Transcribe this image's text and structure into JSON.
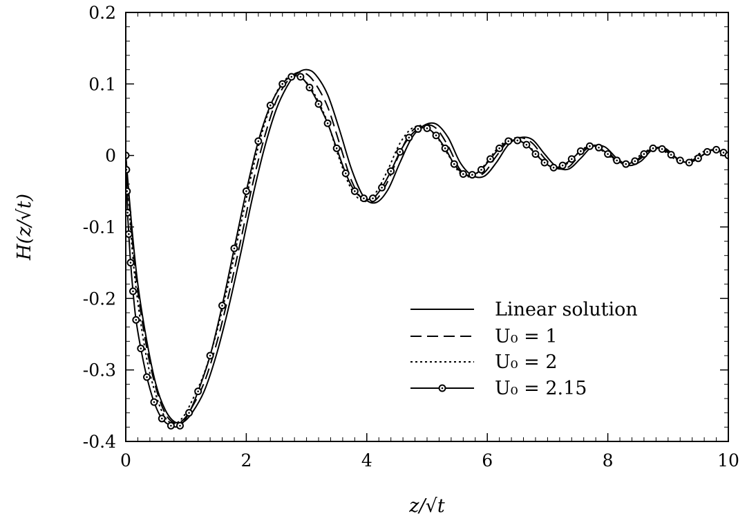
{
  "chart_data": {
    "type": "line",
    "xlabel": "z/√t",
    "ylabel": "H(z/√t)",
    "xlim": [
      0,
      10
    ],
    "ylim": [
      -0.4,
      0.2
    ],
    "x_ticks": [
      "0",
      "2",
      "4",
      "6",
      "8",
      "10"
    ],
    "y_ticks": [
      "-0.4",
      "-0.3",
      "-0.2",
      "-0.1",
      "0",
      "0.1",
      "0.2"
    ],
    "grid": false,
    "legend_position": "bottom-right",
    "series": [
      {
        "name": "Linear solution",
        "style": "solid",
        "points": [
          [
            0,
            0
          ],
          [
            0.1,
            -0.1
          ],
          [
            0.2,
            -0.18
          ],
          [
            0.35,
            -0.26
          ],
          [
            0.5,
            -0.32
          ],
          [
            0.65,
            -0.355
          ],
          [
            0.8,
            -0.372
          ],
          [
            0.95,
            -0.373
          ],
          [
            1.1,
            -0.36
          ],
          [
            1.3,
            -0.33
          ],
          [
            1.5,
            -0.28
          ],
          [
            1.7,
            -0.215
          ],
          [
            1.9,
            -0.14
          ],
          [
            2.1,
            -0.06
          ],
          [
            2.3,
            0.01
          ],
          [
            2.5,
            0.065
          ],
          [
            2.7,
            0.1
          ],
          [
            2.85,
            0.115
          ],
          [
            3.0,
            0.12
          ],
          [
            3.15,
            0.113
          ],
          [
            3.35,
            0.085
          ],
          [
            3.55,
            0.035
          ],
          [
            3.75,
            -0.02
          ],
          [
            3.95,
            -0.058
          ],
          [
            4.15,
            -0.066
          ],
          [
            4.35,
            -0.048
          ],
          [
            4.55,
            -0.01
          ],
          [
            4.75,
            0.025
          ],
          [
            4.95,
            0.042
          ],
          [
            5.15,
            0.044
          ],
          [
            5.35,
            0.025
          ],
          [
            5.55,
            -0.01
          ],
          [
            5.75,
            -0.028
          ],
          [
            5.95,
            -0.029
          ],
          [
            6.15,
            -0.01
          ],
          [
            6.35,
            0.015
          ],
          [
            6.55,
            0.025
          ],
          [
            6.75,
            0.022
          ],
          [
            6.95,
            0.002
          ],
          [
            7.15,
            -0.016
          ],
          [
            7.35,
            -0.019
          ],
          [
            7.55,
            -0.004
          ],
          [
            7.75,
            0.013
          ],
          [
            7.95,
            0.012
          ],
          [
            8.15,
            -0.004
          ],
          [
            8.35,
            -0.014
          ],
          [
            8.55,
            -0.008
          ],
          [
            8.75,
            0.009
          ],
          [
            8.95,
            0.01
          ],
          [
            9.15,
            -0.004
          ],
          [
            9.35,
            -0.01
          ],
          [
            9.55,
            -0.001
          ],
          [
            9.75,
            0.008
          ],
          [
            10,
            0.001
          ]
        ]
      },
      {
        "name": "U₀ = 1",
        "style": "dashed",
        "points": [
          [
            0,
            0
          ],
          [
            0.1,
            -0.11
          ],
          [
            0.2,
            -0.19
          ],
          [
            0.35,
            -0.27
          ],
          [
            0.5,
            -0.325
          ],
          [
            0.65,
            -0.36
          ],
          [
            0.8,
            -0.374
          ],
          [
            0.95,
            -0.37
          ],
          [
            1.1,
            -0.352
          ],
          [
            1.3,
            -0.318
          ],
          [
            1.5,
            -0.265
          ],
          [
            1.7,
            -0.198
          ],
          [
            1.9,
            -0.122
          ],
          [
            2.1,
            -0.042
          ],
          [
            2.3,
            0.025
          ],
          [
            2.5,
            0.077
          ],
          [
            2.7,
            0.106
          ],
          [
            2.85,
            0.116
          ],
          [
            3.0,
            0.114
          ],
          [
            3.15,
            0.1
          ],
          [
            3.35,
            0.068
          ],
          [
            3.55,
            0.016
          ],
          [
            3.75,
            -0.036
          ],
          [
            3.95,
            -0.063
          ],
          [
            4.15,
            -0.062
          ],
          [
            4.35,
            -0.036
          ],
          [
            4.55,
            0.004
          ],
          [
            4.75,
            0.034
          ],
          [
            4.95,
            0.043
          ],
          [
            5.15,
            0.038
          ],
          [
            5.35,
            0.013
          ],
          [
            5.55,
            -0.02
          ],
          [
            5.75,
            -0.03
          ],
          [
            5.95,
            -0.024
          ],
          [
            6.15,
            -0.001
          ],
          [
            6.35,
            0.02
          ],
          [
            6.55,
            0.025
          ],
          [
            6.75,
            0.017
          ],
          [
            6.95,
            -0.004
          ],
          [
            7.15,
            -0.018
          ],
          [
            7.35,
            -0.016
          ],
          [
            7.55,
            0.002
          ],
          [
            7.75,
            0.014
          ],
          [
            7.95,
            0.009
          ],
          [
            8.15,
            -0.007
          ],
          [
            8.35,
            -0.013
          ],
          [
            8.55,
            -0.004
          ],
          [
            8.75,
            0.01
          ],
          [
            8.95,
            0.008
          ],
          [
            9.15,
            -0.006
          ],
          [
            9.35,
            -0.009
          ],
          [
            9.55,
            0.002
          ],
          [
            9.75,
            0.008
          ],
          [
            10,
            0
          ]
        ]
      },
      {
        "name": "U₀ = 2",
        "style": "dotted",
        "points": [
          [
            0,
            0
          ],
          [
            0.1,
            -0.125
          ],
          [
            0.2,
            -0.205
          ],
          [
            0.35,
            -0.285
          ],
          [
            0.5,
            -0.335
          ],
          [
            0.65,
            -0.366
          ],
          [
            0.8,
            -0.375
          ],
          [
            0.95,
            -0.366
          ],
          [
            1.1,
            -0.343
          ],
          [
            1.3,
            -0.305
          ],
          [
            1.5,
            -0.25
          ],
          [
            1.7,
            -0.18
          ],
          [
            1.9,
            -0.1
          ],
          [
            2.1,
            -0.022
          ],
          [
            2.3,
            0.043
          ],
          [
            2.5,
            0.088
          ],
          [
            2.7,
            0.11
          ],
          [
            2.85,
            0.111
          ],
          [
            3.0,
            0.102
          ],
          [
            3.15,
            0.083
          ],
          [
            3.35,
            0.046
          ],
          [
            3.55,
            -0.006
          ],
          [
            3.75,
            -0.048
          ],
          [
            3.95,
            -0.064
          ],
          [
            4.15,
            -0.052
          ],
          [
            4.35,
            -0.02
          ],
          [
            4.55,
            0.017
          ],
          [
            4.75,
            0.038
          ],
          [
            4.95,
            0.04
          ],
          [
            5.15,
            0.027
          ],
          [
            5.35,
            0.001
          ],
          [
            5.55,
            -0.025
          ],
          [
            5.75,
            -0.029
          ],
          [
            5.95,
            -0.014
          ],
          [
            6.15,
            0.008
          ],
          [
            6.35,
            0.022
          ],
          [
            6.55,
            0.021
          ],
          [
            6.75,
            0.008
          ],
          [
            6.95,
            -0.01
          ],
          [
            7.15,
            -0.018
          ],
          [
            7.35,
            -0.01
          ],
          [
            7.55,
            0.007
          ],
          [
            7.75,
            0.014
          ],
          [
            7.95,
            0.004
          ],
          [
            8.15,
            -0.009
          ],
          [
            8.35,
            -0.011
          ],
          [
            8.55,
            0.001
          ],
          [
            8.75,
            0.01
          ],
          [
            8.95,
            0.005
          ],
          [
            9.15,
            -0.007
          ],
          [
            9.35,
            -0.007
          ],
          [
            9.55,
            0.004
          ],
          [
            9.75,
            0.007
          ],
          [
            10,
            -0.001
          ]
        ]
      },
      {
        "name": "U₀ = 2.15",
        "style": "solid-circles",
        "points": [
          [
            0,
            0
          ],
          [
            0.01,
            -0.02
          ],
          [
            0.02,
            -0.05
          ],
          [
            0.03,
            -0.08
          ],
          [
            0.05,
            -0.11
          ],
          [
            0.08,
            -0.15
          ],
          [
            0.12,
            -0.19
          ],
          [
            0.17,
            -0.23
          ],
          [
            0.25,
            -0.27
          ],
          [
            0.35,
            -0.31
          ],
          [
            0.47,
            -0.345
          ],
          [
            0.6,
            -0.368
          ],
          [
            0.75,
            -0.378
          ],
          [
            0.9,
            -0.378
          ],
          [
            1.05,
            -0.36
          ],
          [
            1.2,
            -0.33
          ],
          [
            1.4,
            -0.28
          ],
          [
            1.6,
            -0.21
          ],
          [
            1.8,
            -0.13
          ],
          [
            2.0,
            -0.05
          ],
          [
            2.2,
            0.02
          ],
          [
            2.4,
            0.07
          ],
          [
            2.6,
            0.1
          ],
          [
            2.75,
            0.11
          ],
          [
            2.9,
            0.11
          ],
          [
            3.05,
            0.095
          ],
          [
            3.2,
            0.072
          ],
          [
            3.35,
            0.045
          ],
          [
            3.5,
            0.01
          ],
          [
            3.65,
            -0.025
          ],
          [
            3.8,
            -0.05
          ],
          [
            3.95,
            -0.06
          ],
          [
            4.1,
            -0.06
          ],
          [
            4.25,
            -0.045
          ],
          [
            4.4,
            -0.022
          ],
          [
            4.55,
            0.005
          ],
          [
            4.7,
            0.025
          ],
          [
            4.85,
            0.037
          ],
          [
            5.0,
            0.038
          ],
          [
            5.15,
            0.028
          ],
          [
            5.3,
            0.01
          ],
          [
            5.45,
            -0.012
          ],
          [
            5.6,
            -0.026
          ],
          [
            5.75,
            -0.027
          ],
          [
            5.9,
            -0.02
          ],
          [
            6.05,
            -0.005
          ],
          [
            6.2,
            0.01
          ],
          [
            6.35,
            0.02
          ],
          [
            6.5,
            0.021
          ],
          [
            6.65,
            0.015
          ],
          [
            6.8,
            0.002
          ],
          [
            6.95,
            -0.01
          ],
          [
            7.1,
            -0.017
          ],
          [
            7.25,
            -0.014
          ],
          [
            7.4,
            -0.005
          ],
          [
            7.55,
            0.006
          ],
          [
            7.7,
            0.013
          ],
          [
            7.85,
            0.011
          ],
          [
            8.0,
            0.002
          ],
          [
            8.15,
            -0.007
          ],
          [
            8.3,
            -0.012
          ],
          [
            8.45,
            -0.008
          ],
          [
            8.6,
            0.002
          ],
          [
            8.75,
            0.01
          ],
          [
            8.9,
            0.009
          ],
          [
            9.05,
            0.001
          ],
          [
            9.2,
            -0.007
          ],
          [
            9.35,
            -0.01
          ],
          [
            9.5,
            -0.004
          ],
          [
            9.65,
            0.005
          ],
          [
            9.8,
            0.008
          ],
          [
            9.92,
            0.004
          ],
          [
            10,
            0
          ]
        ]
      }
    ]
  }
}
